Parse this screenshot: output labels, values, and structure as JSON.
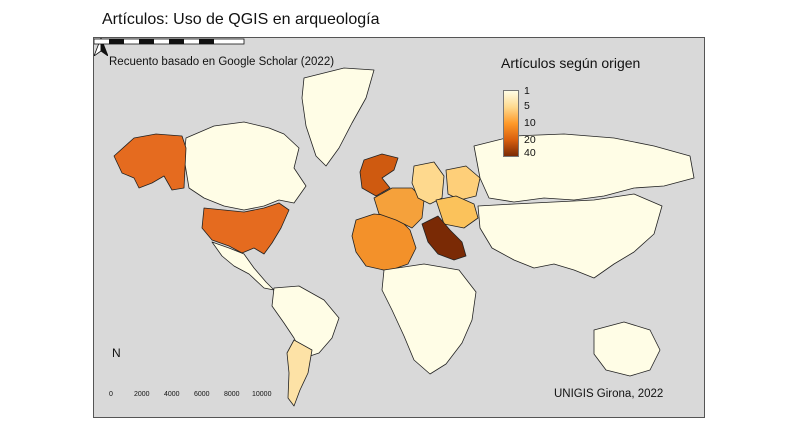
{
  "title": "Artículos: Uso de QGIS en arqueología",
  "subtitle": "Recuento basado en Google Scholar (2022)",
  "credit": "UNIGIS Girona, 2022",
  "legend": {
    "title": "Artículos según origen",
    "ticks": [
      "1",
      "5",
      "10",
      "20",
      "40"
    ],
    "gradient": [
      "#fffde6",
      "#fed98e",
      "#fe9929",
      "#d95f0e",
      "#7a2a05"
    ]
  },
  "north_label": "N",
  "scale": {
    "labels": [
      "0",
      "2000",
      "4000",
      "6000",
      "8000",
      "10000"
    ]
  },
  "colors": {
    "ocean": "#d9d9d9",
    "land_default": "#fffde6",
    "border": "#222222"
  },
  "regions": [
    {
      "name": "Canada",
      "fill": "#fffde6"
    },
    {
      "name": "Alaska",
      "fill": "#e56b1f"
    },
    {
      "name": "United States",
      "fill": "#e56b1f"
    },
    {
      "name": "Greenland",
      "fill": "#fffde6"
    },
    {
      "name": "Mexico",
      "fill": "#fffde6"
    },
    {
      "name": "South America",
      "fill": "#fffde6"
    },
    {
      "name": "Argentina",
      "fill": "#fde2a6"
    },
    {
      "name": "Spain",
      "fill": "#f3912a"
    },
    {
      "name": "France",
      "fill": "#f5a13b"
    },
    {
      "name": "United Kingdom",
      "fill": "#cf5a10"
    },
    {
      "name": "Germany",
      "fill": "#fed98e"
    },
    {
      "name": "Poland",
      "fill": "#fecf79"
    },
    {
      "name": "Austria",
      "fill": "#fbc25b"
    },
    {
      "name": "Italy",
      "fill": "#7a2a05"
    },
    {
      "name": "Russia",
      "fill": "#fffde6"
    },
    {
      "name": "Africa",
      "fill": "#fffde6"
    },
    {
      "name": "Asia",
      "fill": "#fffde6"
    },
    {
      "name": "Australia",
      "fill": "#fffde6"
    }
  ]
}
